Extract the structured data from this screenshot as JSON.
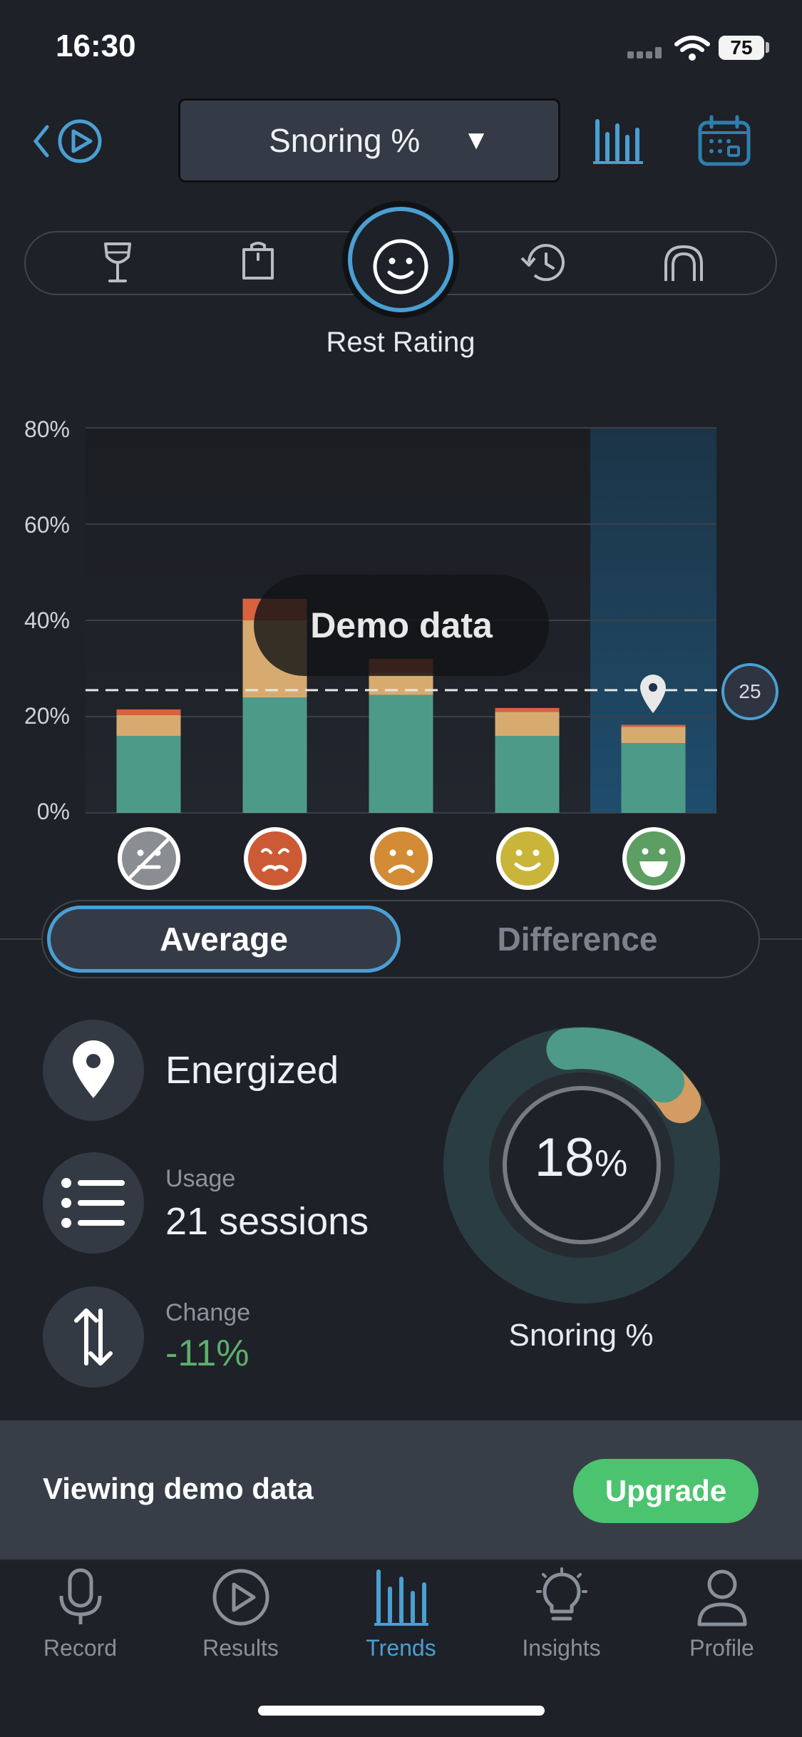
{
  "status_bar": {
    "time": "16:30",
    "battery": "75"
  },
  "header": {
    "metric_selector": "Snoring %"
  },
  "factors": {
    "active_label": "Rest Rating"
  },
  "chart_data": {
    "type": "bar",
    "stacked": true,
    "categories": [
      "No rating",
      "Terrible",
      "Bad",
      "Good",
      "Energized"
    ],
    "series": [
      {
        "color": "#4e9a88",
        "values": [
          16,
          24,
          24.5,
          16,
          14.5
        ]
      },
      {
        "color": "#d7ab70",
        "values": [
          4.3,
          16,
          4.5,
          5,
          3.4
        ]
      },
      {
        "color": "#d9623e",
        "values": [
          1.2,
          4.5,
          3,
          0.8,
          0.4
        ]
      }
    ],
    "ylim": [
      0,
      80
    ],
    "yticks": [
      "0%",
      "20%",
      "40%",
      "60%",
      "80%"
    ],
    "goal_line": 25.5,
    "goal_label": "25",
    "highlighted_category": "Energized",
    "overlay_text": "Demo data",
    "grid": true
  },
  "mode_toggle": {
    "average": "Average",
    "difference": "Difference",
    "selected": "Average"
  },
  "stats": {
    "rating": "Energized",
    "usage_label": "Usage",
    "usage_value": "21 sessions",
    "change_label": "Change",
    "change_value": "-11%"
  },
  "donut": {
    "value": "18",
    "unit": "%",
    "label": "Snoring %",
    "fraction": 0.18
  },
  "banner": {
    "text": "Viewing demo data",
    "button": "Upgrade"
  },
  "tabs": [
    {
      "label": "Record",
      "icon": "microphone-icon"
    },
    {
      "label": "Results",
      "icon": "play-circle-icon"
    },
    {
      "label": "Trends",
      "icon": "bar-chart-icon"
    },
    {
      "label": "Insights",
      "icon": "lightbulb-icon"
    },
    {
      "label": "Profile",
      "icon": "person-icon"
    }
  ],
  "colors": {
    "accent": "#4a9fd3",
    "upgrade": "#4cc46f",
    "change_negative_good": "#5daf6d"
  }
}
